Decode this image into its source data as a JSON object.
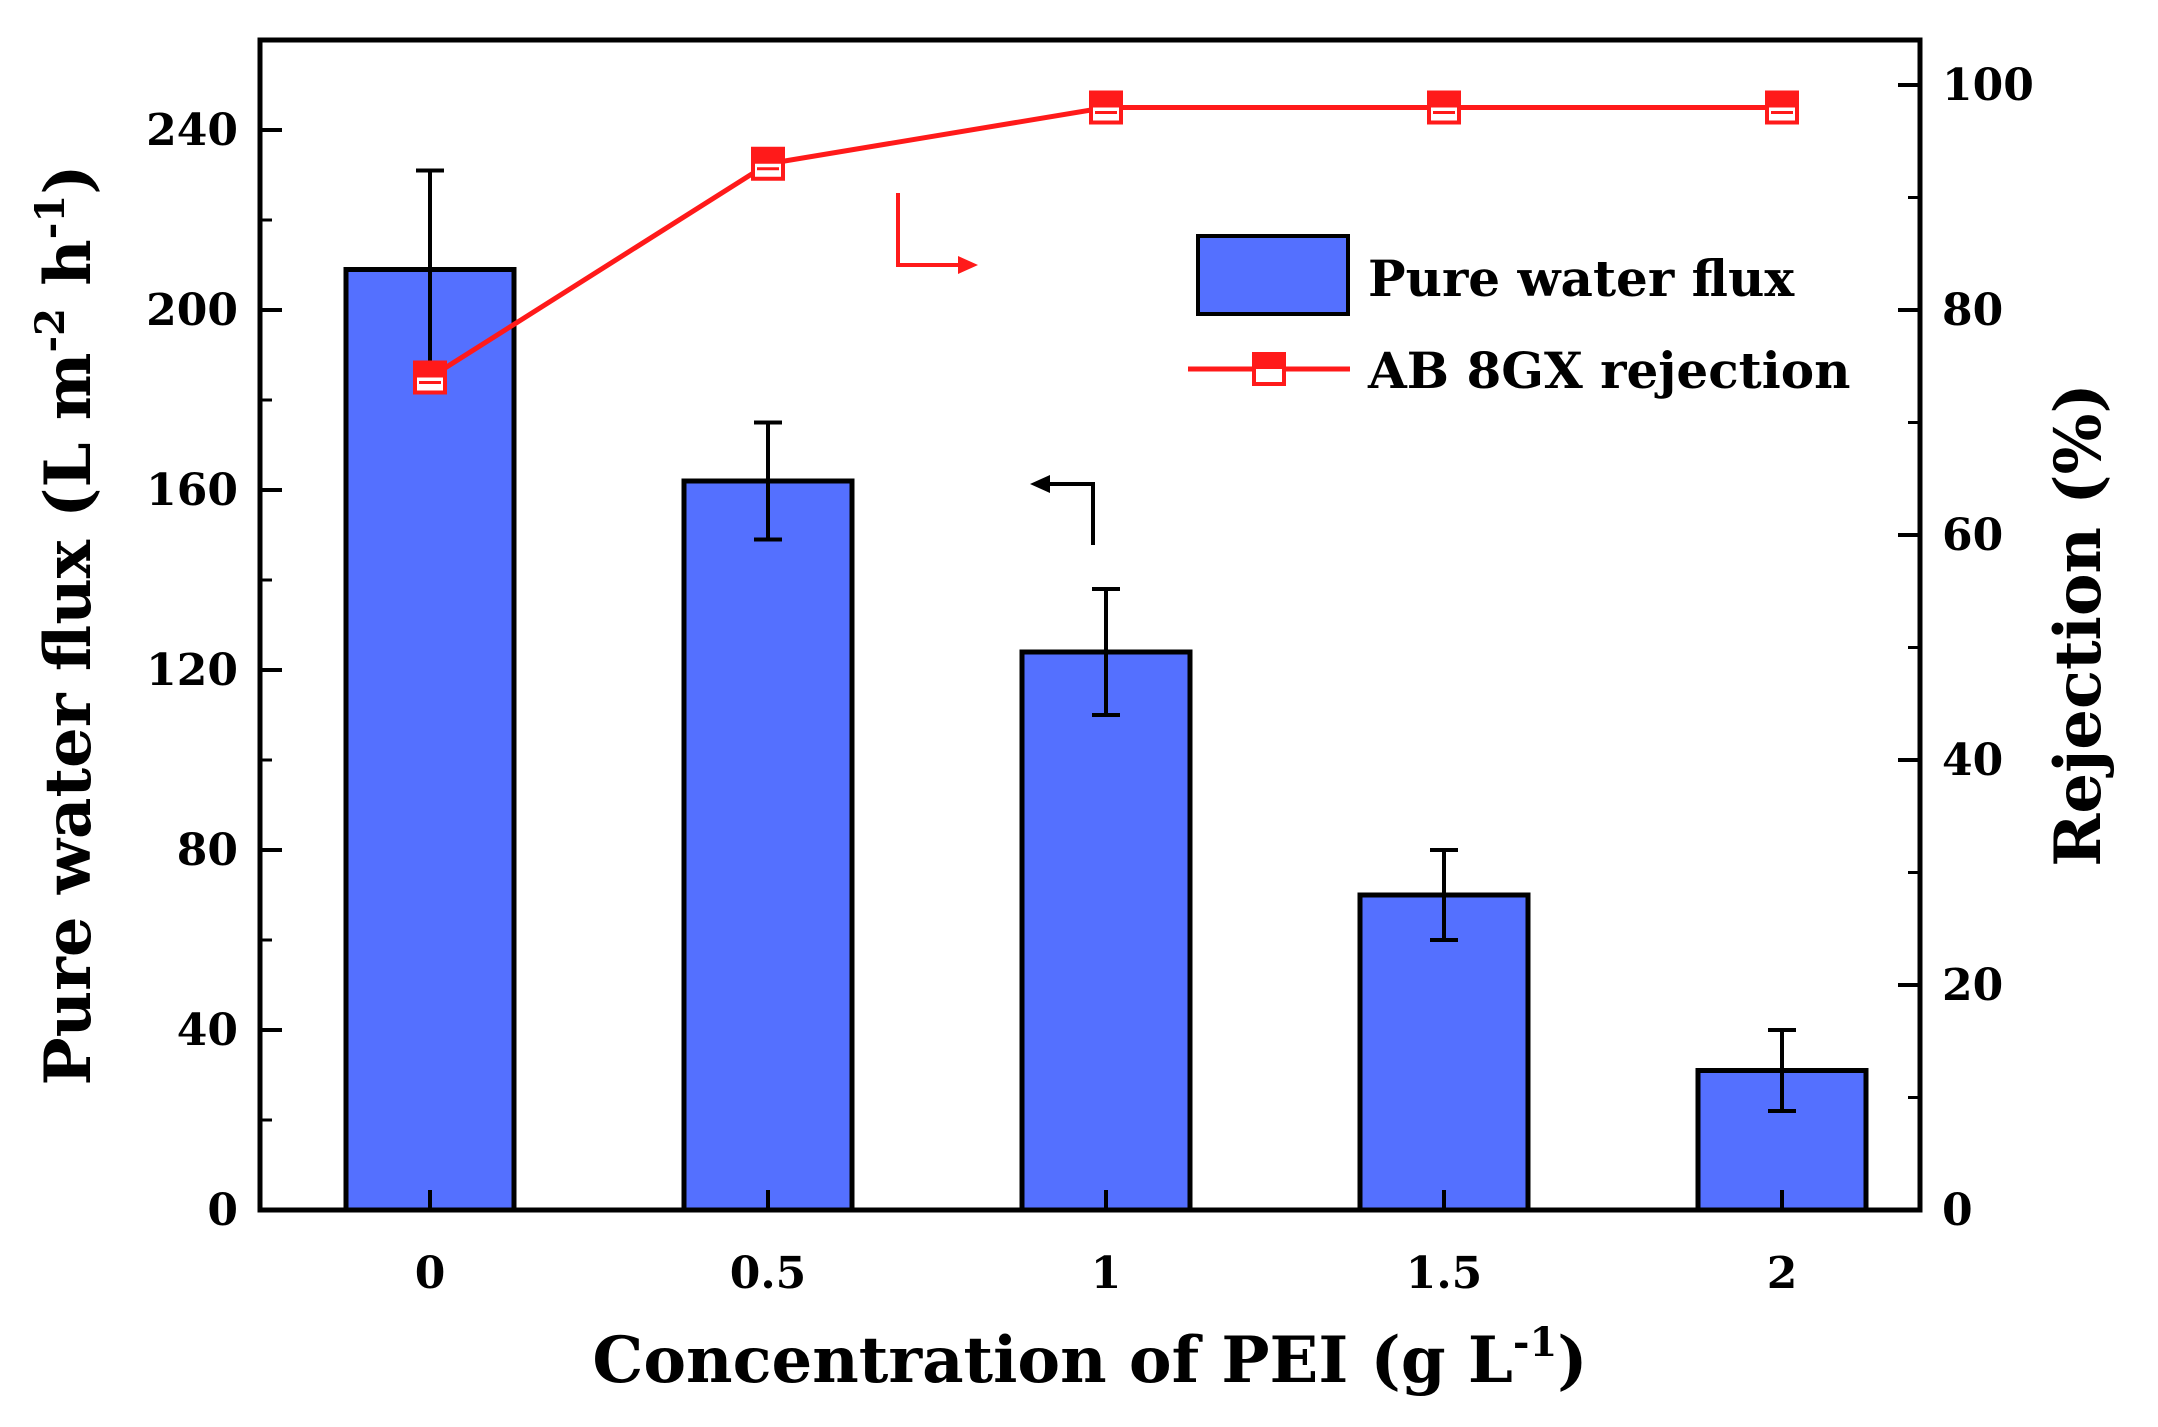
{
  "chart_data": {
    "type": "bar+line",
    "categories": [
      "0",
      "0.5",
      "1",
      "1.5",
      "2"
    ],
    "series": [
      {
        "name": "Pure water flux",
        "type": "bar",
        "axis": "left",
        "values": [
          209,
          162,
          124,
          70,
          31
        ],
        "errors": [
          22,
          13,
          14,
          10,
          9
        ],
        "color": "#5470ff"
      },
      {
        "name": "AB 8GX rejection",
        "type": "line",
        "axis": "right",
        "values": [
          74,
          93,
          98,
          98,
          98
        ],
        "color": "#ff1a1a",
        "marker": "half-filled-square"
      }
    ],
    "xlabel": {
      "main": "Concentration of PEI (g L",
      "sup": "-1",
      "end": ")"
    },
    "ylabel_left": {
      "part1": "Pure water flux (L m",
      "sup1": "-2",
      "part2": " h",
      "sup2": "-1",
      "end": ")"
    },
    "ylabel_right": "Rejection (%)",
    "ylim_left": [
      0,
      260
    ],
    "ylim_right": [
      0,
      104
    ],
    "yticks_left": [
      0,
      40,
      80,
      120,
      160,
      200,
      240
    ],
    "yticks_right": [
      0,
      20,
      40,
      60,
      80,
      100
    ],
    "legend_position": "top-right",
    "grid": false
  },
  "colors": {
    "bar": "#5470ff",
    "line": "#ff1a1a",
    "axis": "#000000"
  }
}
